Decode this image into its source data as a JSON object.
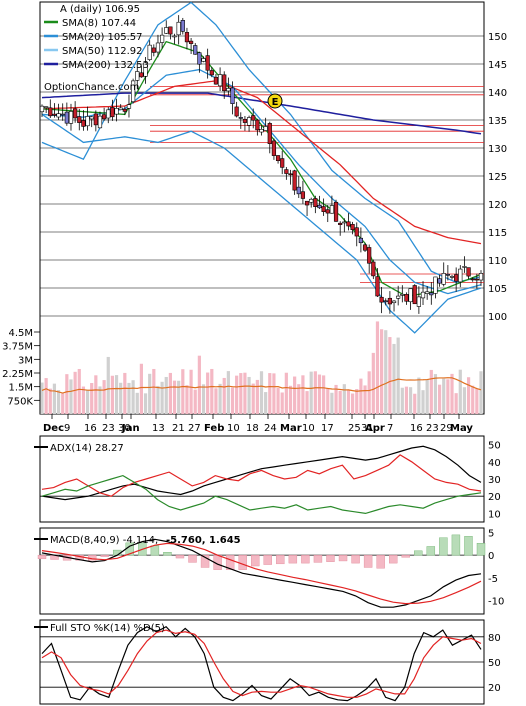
{
  "chart_data": [
    {
      "type": "candlestick",
      "panel": "price",
      "legend": [
        {
          "label": "A (daily) 106.95",
          "color": "#000000"
        },
        {
          "label": "SMA(8) 107.44",
          "color": "#1a8c1a"
        },
        {
          "label": "SMA(20) 105.57",
          "color": "#2c8fd6"
        },
        {
          "label": "SMA(50) 112.92",
          "color": "#88c8f0"
        },
        {
          "label": "SMA(200) 132.53",
          "color": "#1f1f9e"
        }
      ],
      "watermark": "OptionChance.com",
      "earnings_marker": "E",
      "y_ticks": [
        "150",
        "145",
        "140",
        "135",
        "130",
        "125",
        "120",
        "115",
        "110",
        "105",
        "100"
      ],
      "volume_ticks": [
        "4.5M",
        "3.75M",
        "3M",
        "2.25M",
        "1.5M",
        "750K"
      ],
      "x_ticks": [
        "Dec",
        "9",
        "16",
        "23",
        "30",
        "Jan",
        "13",
        "21",
        "27",
        "Feb",
        "10",
        "18",
        "24",
        "Mar",
        "10",
        "17",
        "25",
        "31",
        "Apr",
        "7",
        "16",
        "23",
        "29",
        "May"
      ],
      "close_anchors": [
        {
          "x": 0,
          "close": 137.5
        },
        {
          "x": 10,
          "close": 134.5
        },
        {
          "x": 20,
          "close": 137.5
        },
        {
          "x": 26,
          "close": 147
        },
        {
          "x": 30,
          "close": 151
        },
        {
          "x": 34,
          "close": 151
        },
        {
          "x": 38,
          "close": 146
        },
        {
          "x": 44,
          "close": 141
        },
        {
          "x": 48,
          "close": 135
        },
        {
          "x": 54,
          "close": 134
        },
        {
          "x": 58,
          "close": 126
        },
        {
          "x": 64,
          "close": 120
        },
        {
          "x": 70,
          "close": 119
        },
        {
          "x": 78,
          "close": 111
        },
        {
          "x": 82,
          "close": 103
        },
        {
          "x": 86,
          "close": 103
        },
        {
          "x": 92,
          "close": 104
        },
        {
          "x": 98,
          "close": 107
        },
        {
          "x": 104,
          "close": 108
        },
        {
          "x": 106,
          "close": 107
        }
      ],
      "sma_anchors": {
        "sma8": [
          {
            "x": 0,
            "v": 137
          },
          {
            "x": 20,
            "v": 136
          },
          {
            "x": 26,
            "v": 144
          },
          {
            "x": 30,
            "v": 149
          },
          {
            "x": 38,
            "v": 147
          },
          {
            "x": 46,
            "v": 140
          },
          {
            "x": 52,
            "v": 135
          },
          {
            "x": 60,
            "v": 128
          },
          {
            "x": 66,
            "v": 121
          },
          {
            "x": 72,
            "v": 118
          },
          {
            "x": 78,
            "v": 113
          },
          {
            "x": 82,
            "v": 106
          },
          {
            "x": 88,
            "v": 103.5
          },
          {
            "x": 96,
            "v": 104.5
          },
          {
            "x": 106,
            "v": 107.44
          }
        ],
        "sma20": [
          {
            "x": 0,
            "v": 136
          },
          {
            "x": 10,
            "v": 135.5
          },
          {
            "x": 20,
            "v": 137
          },
          {
            "x": 30,
            "v": 143
          },
          {
            "x": 38,
            "v": 144
          },
          {
            "x": 46,
            "v": 141
          },
          {
            "x": 54,
            "v": 134
          },
          {
            "x": 62,
            "v": 127
          },
          {
            "x": 70,
            "v": 121
          },
          {
            "x": 78,
            "v": 116
          },
          {
            "x": 84,
            "v": 110
          },
          {
            "x": 90,
            "v": 106
          },
          {
            "x": 98,
            "v": 104
          },
          {
            "x": 106,
            "v": 105.57
          }
        ],
        "sma50": [
          {
            "x": 0,
            "v": 137
          },
          {
            "x": 20,
            "v": 137.5
          },
          {
            "x": 32,
            "v": 141
          },
          {
            "x": 42,
            "v": 142
          },
          {
            "x": 52,
            "v": 139
          },
          {
            "x": 62,
            "v": 133
          },
          {
            "x": 72,
            "v": 127
          },
          {
            "x": 80,
            "v": 121
          },
          {
            "x": 90,
            "v": 116
          },
          {
            "x": 98,
            "v": 114
          },
          {
            "x": 106,
            "v": 112.92
          }
        ],
        "sma200": [
          {
            "x": 0,
            "v": 139
          },
          {
            "x": 20,
            "v": 139.8
          },
          {
            "x": 40,
            "v": 139.8
          },
          {
            "x": 60,
            "v": 137.5
          },
          {
            "x": 80,
            "v": 135
          },
          {
            "x": 100,
            "v": 133.2
          },
          {
            "x": 106,
            "v": 132.53
          }
        ]
      },
      "bollinger": {
        "upper": [
          {
            "x": 0,
            "v": 131
          },
          {
            "x": 10,
            "v": 128
          },
          {
            "x": 20,
            "v": 142
          },
          {
            "x": 28,
            "v": 152
          },
          {
            "x": 36,
            "v": 156
          },
          {
            "x": 42,
            "v": 152
          },
          {
            "x": 50,
            "v": 144
          },
          {
            "x": 60,
            "v": 136
          },
          {
            "x": 70,
            "v": 126
          },
          {
            "x": 78,
            "v": 121
          },
          {
            "x": 86,
            "v": 117
          },
          {
            "x": 94,
            "v": 108
          },
          {
            "x": 100,
            "v": 106
          },
          {
            "x": 106,
            "v": 107
          }
        ],
        "lower": [
          {
            "x": 0,
            "v": 136
          },
          {
            "x": 10,
            "v": 131
          },
          {
            "x": 20,
            "v": 132
          },
          {
            "x": 28,
            "v": 131
          },
          {
            "x": 36,
            "v": 133
          },
          {
            "x": 44,
            "v": 130
          },
          {
            "x": 52,
            "v": 125
          },
          {
            "x": 60,
            "v": 120
          },
          {
            "x": 68,
            "v": 115
          },
          {
            "x": 76,
            "v": 110
          },
          {
            "x": 84,
            "v": 101
          },
          {
            "x": 90,
            "v": 97
          },
          {
            "x": 98,
            "v": 103
          },
          {
            "x": 106,
            "v": 105
          }
        ]
      },
      "volume_avg_label": "",
      "horizontal_levels": [
        141,
        139.5,
        134,
        133,
        131
      ],
      "highlight_levels": [
        107.5,
        106
      ]
    },
    {
      "type": "line",
      "panel": "adx",
      "title": "ADX(14) 28.27",
      "y_ticks": [
        "50",
        "40",
        "30",
        "20",
        "10"
      ],
      "ylim": [
        5,
        55
      ],
      "series": [
        {
          "name": "ADX(14)",
          "color": "#000000",
          "values": [
            20,
            19,
            18,
            19,
            20,
            22,
            24,
            26,
            27,
            25,
            23,
            22,
            21,
            23,
            26,
            28,
            30,
            32,
            34,
            36,
            37,
            38,
            39,
            40,
            41,
            42,
            43,
            42,
            41,
            42,
            44,
            46,
            48,
            49,
            47,
            43,
            38,
            32,
            28
          ]
        },
        {
          "color": "#e22424",
          "values": [
            24,
            25,
            28,
            30,
            26,
            22,
            20,
            25,
            28,
            30,
            32,
            34,
            30,
            26,
            28,
            32,
            30,
            29,
            33,
            35,
            32,
            30,
            31,
            35,
            33,
            36,
            38,
            30,
            32,
            35,
            38,
            44,
            40,
            35,
            30,
            28,
            27,
            24,
            23
          ]
        },
        {
          "color": "#2b8a2b",
          "values": [
            20,
            22,
            24,
            23,
            26,
            28,
            30,
            32,
            28,
            24,
            18,
            14,
            12,
            14,
            16,
            20,
            18,
            15,
            12,
            13,
            14,
            13,
            15,
            12,
            13,
            14,
            12,
            11,
            10,
            12,
            14,
            15,
            14,
            13,
            16,
            18,
            20,
            21,
            22
          ]
        }
      ]
    },
    {
      "type": "line",
      "panel": "macd",
      "title": "MACD(8,40,9) -4.114,",
      "signal_label": "-5.760,",
      "histogram_label": "1.645",
      "y_ticks": [
        "5",
        "0",
        "-5",
        "-10"
      ],
      "ylim": [
        -13,
        6
      ],
      "series": [
        {
          "name": "MACD(8,40,9)",
          "color": "#000000",
          "values": [
            0.5,
            0,
            -0.5,
            -1,
            -1.5,
            -1.2,
            0,
            2,
            3,
            3.5,
            3,
            2,
            1,
            -0.5,
            -2,
            -3,
            -4,
            -4.5,
            -5,
            -5.5,
            -6,
            -6.5,
            -7,
            -7.5,
            -8,
            -9,
            -10.5,
            -11.5,
            -11.5,
            -11,
            -10,
            -9,
            -7,
            -5.5,
            -4.5,
            -4.114
          ]
        },
        {
          "color": "#e22424",
          "values": [
            1,
            0.6,
            0.2,
            -0.3,
            -0.8,
            -1,
            -0.7,
            0.3,
            1.3,
            2.2,
            2.6,
            2.4,
            2,
            1.2,
            0,
            -1,
            -2,
            -3,
            -3.7,
            -4.3,
            -4.9,
            -5.4,
            -6,
            -6.6,
            -7.2,
            -7.9,
            -8.8,
            -9.7,
            -10.4,
            -10.7,
            -10.6,
            -10.2,
            -9.4,
            -8.3,
            -7.1,
            -5.76
          ]
        }
      ]
    },
    {
      "type": "line",
      "panel": "stochastic",
      "title": "Full STO %K(14) %D(5)",
      "y_ticks": [
        "80",
        "50",
        "20"
      ],
      "ylim": [
        0,
        100
      ],
      "series": [
        {
          "name": "%K(14)",
          "color": "#000000",
          "values": [
            60,
            72,
            40,
            8,
            5,
            20,
            12,
            8,
            40,
            70,
            85,
            92,
            86,
            92,
            80,
            90,
            80,
            60,
            20,
            8,
            4,
            12,
            22,
            10,
            6,
            18,
            30,
            22,
            10,
            14,
            8,
            5,
            4,
            10,
            18,
            30,
            8,
            4,
            20,
            60,
            85,
            80,
            88,
            70,
            76,
            82,
            65
          ]
        },
        {
          "name": "%D(5)",
          "color": "#e22424",
          "values": [
            55,
            62,
            55,
            35,
            22,
            18,
            16,
            12,
            22,
            40,
            60,
            75,
            85,
            88,
            84,
            86,
            83,
            72,
            50,
            30,
            15,
            10,
            14,
            15,
            14,
            14,
            18,
            22,
            20,
            16,
            12,
            10,
            8,
            8,
            12,
            18,
            15,
            12,
            12,
            30,
            55,
            70,
            80,
            78,
            76,
            78,
            72
          ]
        }
      ]
    }
  ]
}
